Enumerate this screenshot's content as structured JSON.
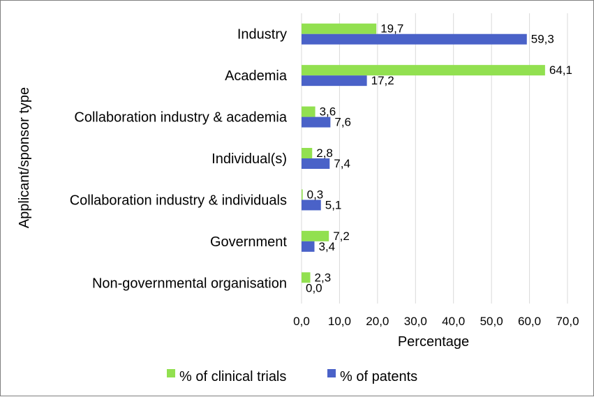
{
  "chart_data": {
    "type": "bar",
    "orientation": "horizontal",
    "categories": [
      "Industry",
      "Academia",
      "Collaboration industry & academia",
      "Individual(s)",
      "Collaboration industry & individuals",
      "Government",
      "Non-governmental organisation"
    ],
    "series": [
      {
        "name": "% of clinical trials",
        "color": "#92e050",
        "values": [
          19.7,
          64.1,
          3.6,
          2.8,
          0.3,
          7.2,
          2.3
        ],
        "labels": [
          "19,7",
          "64,1",
          "3,6",
          "2,8",
          "0,3",
          "7,2",
          "2,3"
        ]
      },
      {
        "name": "% of patents",
        "color": "#4a62c8",
        "values": [
          59.3,
          17.2,
          7.6,
          7.4,
          5.1,
          3.4,
          0.0
        ],
        "labels": [
          "59,3",
          "17,2",
          "7,6",
          "7,4",
          "5,1",
          "3,4",
          "0,0"
        ]
      }
    ],
    "xlabel": "Percentage",
    "ylabel": "Applicant/sponsor type",
    "xlim": [
      0,
      70
    ],
    "xticks": [
      0,
      10,
      20,
      30,
      40,
      50,
      60,
      70
    ],
    "xtick_labels": [
      "0,0",
      "10,0",
      "20,0",
      "30,0",
      "40,0",
      "50,0",
      "60,0",
      "70,0"
    ],
    "grid": "vertical",
    "legend_position": "bottom"
  }
}
